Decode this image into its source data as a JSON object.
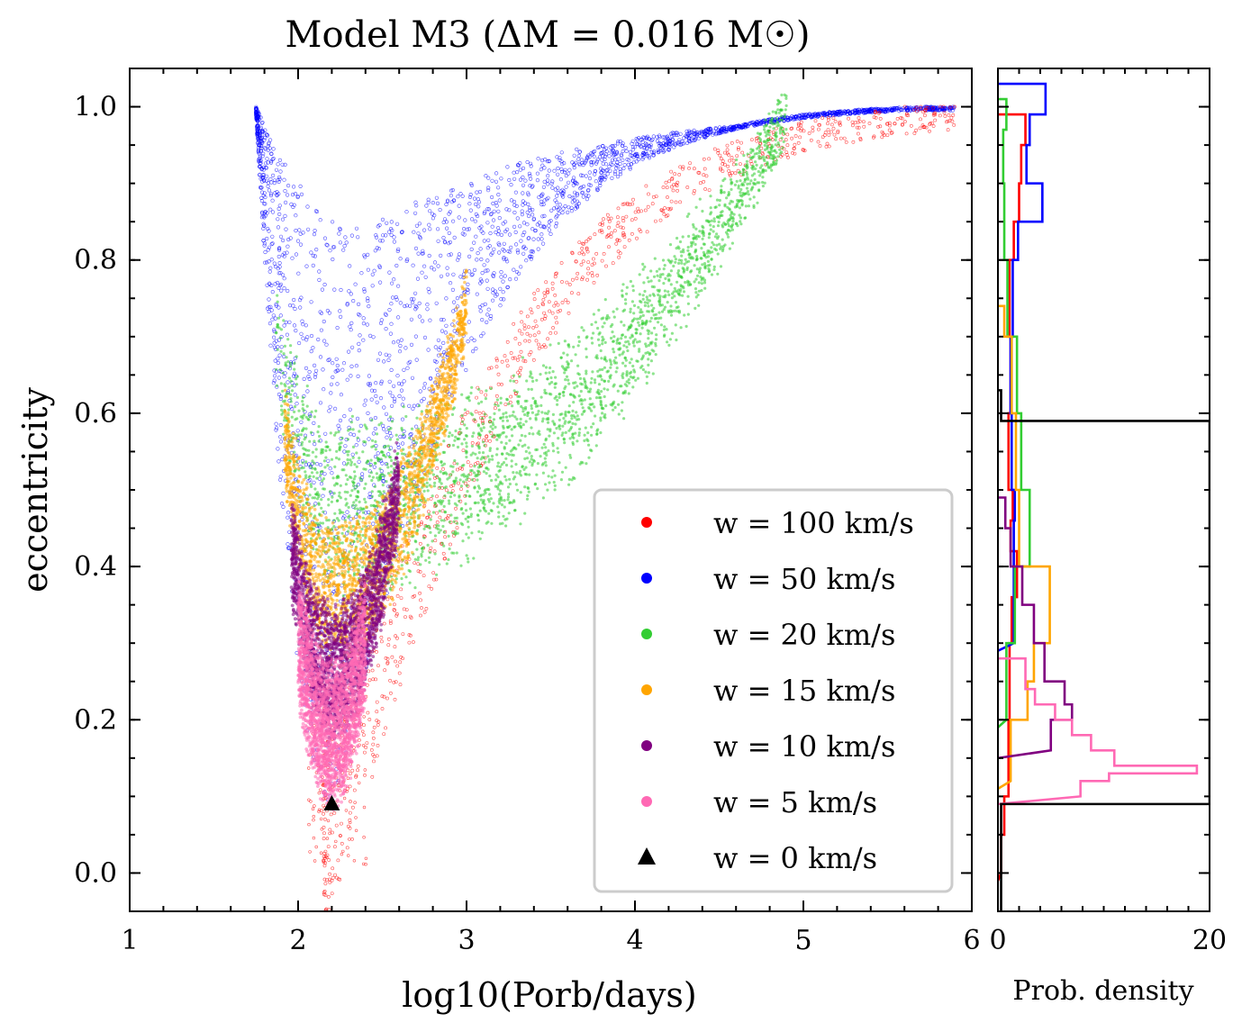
{
  "chart_data": [
    {
      "type": "scatter",
      "title": "Model M3 (ΔM = 0.016 M☉)",
      "xlabel": "log10(Porb/days)",
      "ylabel": "eccentricity",
      "xlim": [
        1,
        6
      ],
      "ylim": [
        -0.05,
        1.05
      ],
      "xticks": [
        1,
        2,
        3,
        4,
        5,
        6
      ],
      "yticks": [
        0.0,
        0.2,
        0.4,
        0.6,
        0.8,
        1.0
      ],
      "legend_position": "lower-right",
      "series": [
        {
          "name": "w = 100 km/s",
          "color": "#ff0000",
          "marker": "circle",
          "region": {
            "xmin": 1.85,
            "vertex_x": 2.2,
            "vertex_e": 0.01,
            "upper_branch": "sparse band from (2.2, 0.05) rising to (5.9, 1.0)"
          }
        },
        {
          "name": "w = 50 km/s",
          "color": "#0000ff",
          "marker": "circle",
          "envelope": {
            "xmin": 1.75,
            "emax_at_xmin": 1.0,
            "min_upper": [
              2.4,
              0.84
            ],
            "tail_end": [
              5.9,
              1.0
            ]
          }
        },
        {
          "name": "w = 20 km/s",
          "color": "#32cd32",
          "marker": "circle",
          "band": {
            "left_end": [
              1.87,
              0.65
            ],
            "vertex": [
              2.22,
              0.38
            ],
            "right_end": [
              4.9,
              0.985
            ]
          }
        },
        {
          "name": "w = 15 km/s",
          "color": "#ffa500",
          "marker": "circle",
          "band": {
            "left_end": [
              1.92,
              0.52
            ],
            "vertex": [
              2.2,
              0.29
            ],
            "right_end": [
              3.0,
              0.71
            ]
          }
        },
        {
          "name": "w = 10 km/s",
          "color": "#800080",
          "marker": "circle",
          "band": {
            "left_end": [
              1.96,
              0.37
            ],
            "vertex": [
              2.2,
              0.19
            ],
            "right_end": [
              2.6,
              0.46
            ]
          }
        },
        {
          "name": "w = 5 km/s",
          "color": "#ff69b4",
          "marker": "circle",
          "band": {
            "left_end": [
              2.0,
              0.24
            ],
            "vertex": [
              2.2,
              0.1
            ],
            "right_end": [
              2.4,
              0.24
            ]
          }
        },
        {
          "name": "w = 0 km/s",
          "color": "#000000",
          "marker": "triangle",
          "points": [
            {
              "x": 2.2,
              "y": 0.09
            }
          ]
        }
      ]
    },
    {
      "type": "histogram",
      "orientation": "horizontal",
      "xlabel": "Prob. density",
      "xlim": [
        0,
        20
      ],
      "xticks": [
        0,
        20
      ],
      "ylim": [
        -0.05,
        1.05
      ],
      "series": [
        {
          "name": "w = 100 km/s",
          "color": "#ff0000",
          "bins": [
            [
              0.0,
              0.3
            ],
            [
              0.05,
              0.6
            ],
            [
              0.1,
              1.0
            ],
            [
              0.2,
              1.1
            ],
            [
              0.3,
              1.3
            ],
            [
              0.36,
              1.8
            ],
            [
              0.42,
              1.2
            ],
            [
              0.46,
              1.4
            ],
            [
              0.5,
              1.0
            ],
            [
              0.6,
              1.2
            ],
            [
              0.7,
              1.1
            ],
            [
              0.8,
              1.5
            ],
            [
              0.85,
              2.0
            ],
            [
              0.9,
              2.2
            ],
            [
              0.95,
              2.6
            ]
          ]
        },
        {
          "name": "w = 50 km/s",
          "color": "#0000ff",
          "bins": [
            [
              0.3,
              1.5
            ],
            [
              0.46,
              1.6
            ],
            [
              0.5,
              1.3
            ],
            [
              0.6,
              1.2
            ],
            [
              0.7,
              1.4
            ],
            [
              0.8,
              1.9
            ],
            [
              0.85,
              4.2
            ],
            [
              0.9,
              2.7
            ],
            [
              0.95,
              3.0
            ],
            [
              0.99,
              4.5
            ]
          ]
        },
        {
          "name": "w = 20 km/s",
          "color": "#32cd32",
          "bins": [
            [
              0.2,
              0.8
            ],
            [
              0.3,
              1.6
            ],
            [
              0.4,
              3.0
            ],
            [
              0.5,
              2.2
            ],
            [
              0.6,
              1.8
            ],
            [
              0.7,
              0.9
            ],
            [
              0.8,
              0.6
            ],
            [
              0.9,
              0.5
            ],
            [
              0.97,
              0.8
            ]
          ]
        },
        {
          "name": "w = 15 km/s",
          "color": "#ffa500",
          "bins": [
            [
              0.12,
              1.2
            ],
            [
              0.2,
              2.8
            ],
            [
              0.25,
              3.4
            ],
            [
              0.3,
              4.9
            ],
            [
              0.4,
              2.0
            ],
            [
              0.5,
              1.7
            ],
            [
              0.6,
              1.3
            ],
            [
              0.7,
              0.6
            ]
          ]
        },
        {
          "name": "w = 10 km/s",
          "color": "#800080",
          "bins": [
            [
              0.16,
              5.0
            ],
            [
              0.2,
              7.0
            ],
            [
              0.22,
              6.3
            ],
            [
              0.25,
              4.4
            ],
            [
              0.3,
              3.4
            ],
            [
              0.35,
              2.3
            ],
            [
              0.4,
              1.2
            ],
            [
              0.45,
              0.7
            ]
          ]
        },
        {
          "name": "w = 5 km/s",
          "color": "#ff69b4",
          "bins": [
            [
              0.1,
              7.8
            ],
            [
              0.12,
              10.5
            ],
            [
              0.13,
              18.8
            ],
            [
              0.14,
              11.0
            ],
            [
              0.16,
              8.8
            ],
            [
              0.18,
              7.0
            ],
            [
              0.2,
              5.4
            ],
            [
              0.22,
              3.5
            ],
            [
              0.24,
              2.6
            ]
          ]
        },
        {
          "name": "w = 0 km/s",
          "color": "#000000",
          "bins": [
            [
              -0.05,
              0.3
            ],
            [
              0.09,
              20.0
            ],
            [
              0.1,
              20.0
            ],
            [
              0.59,
              0.3
            ]
          ]
        }
      ]
    }
  ]
}
